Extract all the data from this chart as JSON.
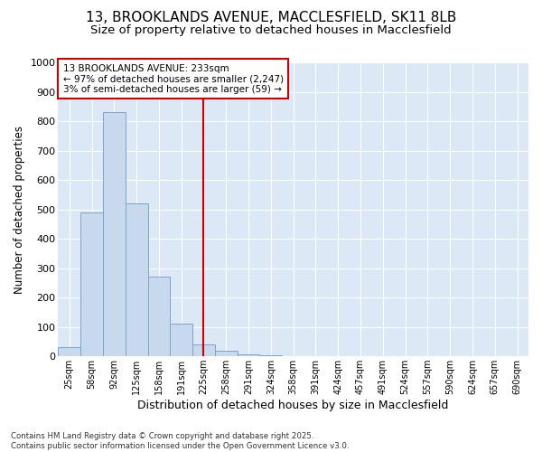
{
  "title": "13, BROOKLANDS AVENUE, MACCLESFIELD, SK11 8LB",
  "subtitle": "Size of property relative to detached houses in Macclesfield",
  "xlabel": "Distribution of detached houses by size in Macclesfield",
  "ylabel": "Number of detached properties",
  "footer": "Contains HM Land Registry data © Crown copyright and database right 2025.\nContains public sector information licensed under the Open Government Licence v3.0.",
  "categories": [
    "25sqm",
    "58sqm",
    "92sqm",
    "125sqm",
    "158sqm",
    "191sqm",
    "225sqm",
    "258sqm",
    "291sqm",
    "324sqm",
    "358sqm",
    "391sqm",
    "424sqm",
    "457sqm",
    "491sqm",
    "524sqm",
    "557sqm",
    "590sqm",
    "624sqm",
    "657sqm",
    "690sqm"
  ],
  "values": [
    32,
    490,
    830,
    520,
    270,
    110,
    40,
    20,
    7,
    4,
    0,
    0,
    0,
    0,
    0,
    0,
    0,
    0,
    0,
    0,
    0
  ],
  "bar_color": "#c8d8ed",
  "bar_edge_color": "#7ba4cc",
  "property_line_x": 6.0,
  "property_line_color": "#cc0000",
  "annotation_text": "13 BROOKLANDS AVENUE: 233sqm\n← 97% of detached houses are smaller (2,247)\n3% of semi-detached houses are larger (59) →",
  "annotation_box_color": "#ffffff",
  "annotation_box_edge_color": "#cc0000",
  "ylim": [
    0,
    1000
  ],
  "yticks": [
    0,
    100,
    200,
    300,
    400,
    500,
    600,
    700,
    800,
    900,
    1000
  ],
  "bg_color": "#ffffff",
  "plot_bg_color": "#dce8f5",
  "grid_color": "#ffffff",
  "title_fontsize": 11,
  "subtitle_fontsize": 9.5,
  "xlabel_fontsize": 9,
  "ylabel_fontsize": 8.5
}
